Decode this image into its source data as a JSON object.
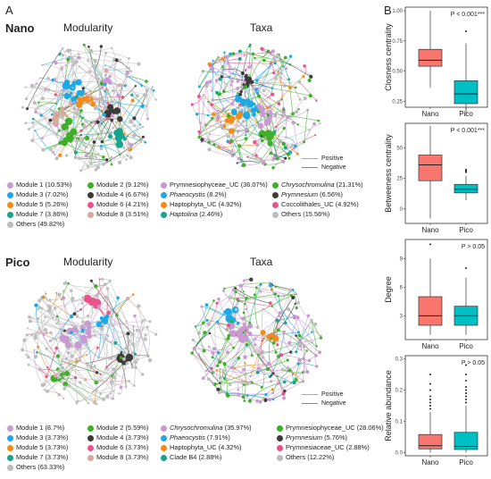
{
  "panels": {
    "a": "A",
    "b": "B"
  },
  "nano": {
    "label": "Nano",
    "modularity_title": "Modularity",
    "taxa_title": "Taxa",
    "edge_legend": {
      "positive": "Positive",
      "negative": "Negative"
    },
    "modules": [
      {
        "label": "Module 1 (10.53%)",
        "color": "#c89ad2"
      },
      {
        "label": "Module 2 (9.12%)",
        "color": "#3fae2a"
      },
      {
        "label": "Module 3 (7.02%)",
        "color": "#1ca9e6"
      },
      {
        "label": "Module 4 (6.67%)",
        "color": "#3d3a3a"
      },
      {
        "label": "Module 5 (5.26%)",
        "color": "#f28a1c"
      },
      {
        "label": "Module 6 (4.21%)",
        "color": "#e8548a"
      },
      {
        "label": "Module 7 (3.86%)",
        "color": "#16a58f"
      },
      {
        "label": "Module 8 (3.51%)",
        "color": "#d9a79b"
      },
      {
        "label": "Others (49.82%)",
        "color": "#bdbdbd"
      }
    ],
    "taxa": [
      {
        "label": "Prymnesiophyceae_UC (36.07%)",
        "color": "#c89ad2",
        "italic": false
      },
      {
        "label": "Chrysochromulina",
        "suffix": " (21.31%)",
        "color": "#3fae2a",
        "italic": true
      },
      {
        "label": "Phaeocystis",
        "suffix": " (8.2%)",
        "color": "#1ca9e6",
        "italic": true
      },
      {
        "label": "Prymnesium",
        "suffix": " (6.56%)",
        "color": "#3d3a3a",
        "italic": true
      },
      {
        "label": "Haptophyta_UC (4.92%)",
        "color": "#f28a1c",
        "italic": false
      },
      {
        "label": "Coccolithales_UC (4.92%)",
        "color": "#e8548a",
        "italic": false
      },
      {
        "label": "Haptolina",
        "suffix": " (2.46%)",
        "color": "#16a58f",
        "italic": true
      },
      {
        "label": "Others (15.56%)",
        "color": "#bdbdbd",
        "italic": false
      }
    ]
  },
  "pico": {
    "label": "Pico",
    "modularity_title": "Modularity",
    "taxa_title": "Taxa",
    "edge_legend": {
      "positive": "Positive",
      "negative": "Negative"
    },
    "modules": [
      {
        "label": "Module 1 (8.7%)",
        "color": "#c89ad2"
      },
      {
        "label": "Module 2 (5.59%)",
        "color": "#3fae2a"
      },
      {
        "label": "Module 3 (3.73%)",
        "color": "#1ca9e6"
      },
      {
        "label": "Module 4 (3.73%)",
        "color": "#3d3a3a"
      },
      {
        "label": "Module 5 (3.73%)",
        "color": "#f28a1c"
      },
      {
        "label": "Module 6 (3.73%)",
        "color": "#e8548a"
      },
      {
        "label": "Module 7 (3.73%)",
        "color": "#16a58f"
      },
      {
        "label": "Module 8 (3.73%)",
        "color": "#d9a79b"
      },
      {
        "label": "Others (63.33%)",
        "color": "#bdbdbd"
      }
    ],
    "taxa": [
      {
        "label": "Chrysochromulina",
        "suffix": " (35.97%)",
        "color": "#c89ad2",
        "italic": true
      },
      {
        "label": "Prymnesiophyceae_UC (28.06%)",
        "color": "#3fae2a",
        "italic": false
      },
      {
        "label": "Phaeocystis",
        "suffix": " (7.91%)",
        "color": "#1ca9e6",
        "italic": true
      },
      {
        "label": "Prymnesium",
        "suffix": " (5.76%)",
        "color": "#3d3a3a",
        "italic": true
      },
      {
        "label": "Haptophyta_UC (4.32%)",
        "color": "#f28a1c",
        "italic": false
      },
      {
        "label": "Prymnesiaceae_UC (2.88%)",
        "color": "#e8548a",
        "italic": false
      },
      {
        "label": "Clade B4 (2.88%)",
        "color": "#16a58f",
        "italic": false
      },
      {
        "label": "Others (12.22%)",
        "color": "#bdbdbd",
        "italic": false
      }
    ]
  },
  "chart_data": [
    {
      "type": "boxplot",
      "ylabel": "Closness centrality",
      "annotation": "P < 0.001***",
      "categories": [
        "Nano",
        "Pico"
      ],
      "yticks": [
        "0.25",
        "0.50",
        "0.75",
        "1.00"
      ],
      "ylim": [
        0.2,
        1.03
      ],
      "colors": [
        "#f8766d",
        "#00bfc4"
      ],
      "boxes": [
        {
          "min": 0.36,
          "q1": 0.54,
          "median": 0.59,
          "q3": 0.68,
          "max": 1.0,
          "outliers": []
        },
        {
          "min": 0.13,
          "q1": 0.23,
          "median": 0.31,
          "q3": 0.42,
          "max": 0.73,
          "outliers": [
            0.83
          ]
        }
      ]
    },
    {
      "type": "boxplot",
      "ylabel": "Betweeness centrality",
      "annotation": "P < 0.001***",
      "categories": [
        "Nano",
        "Pico"
      ],
      "yticks": [
        "0",
        "25",
        "50"
      ],
      "ylim": [
        -12,
        70
      ],
      "colors": [
        "#f8766d",
        "#00bfc4"
      ],
      "boxes": [
        {
          "min": -8,
          "q1": 23,
          "median": 36,
          "q3": 44,
          "max": 68,
          "outliers": []
        },
        {
          "min": 7,
          "q1": 13,
          "median": 16,
          "q3": 20,
          "max": 27,
          "outliers": [
            30,
            31,
            32
          ]
        }
      ]
    },
    {
      "type": "boxplot",
      "ylabel": "Degree",
      "annotation": "P > 0.05",
      "categories": [
        "Nano",
        "Pico"
      ],
      "yticks": [
        "3",
        "6",
        "9"
      ],
      "ylim": [
        0.5,
        11
      ],
      "colors": [
        "#f8766d",
        "#00bfc4"
      ],
      "boxes": [
        {
          "min": 1,
          "q1": 2,
          "median": 3,
          "q3": 5,
          "max": 9,
          "outliers": [
            10.5
          ]
        },
        {
          "min": 1,
          "q1": 2,
          "median": 3,
          "q3": 4,
          "max": 7,
          "outliers": [
            8
          ]
        }
      ]
    },
    {
      "type": "boxplot",
      "ylabel": "Relative abundance",
      "annotation": "P > 0.05",
      "categories": [
        "Nano",
        "Pico"
      ],
      "yticks": [
        "0.0",
        "0.1",
        "0.2",
        "0.3"
      ],
      "ylim": [
        -0.01,
        0.31
      ],
      "colors": [
        "#f8766d",
        "#00bfc4"
      ],
      "boxes": [
        {
          "min": 0.0,
          "q1": 0.012,
          "median": 0.022,
          "q3": 0.058,
          "max": 0.13,
          "outliers": [
            0.14,
            0.15,
            0.16,
            0.17,
            0.18,
            0.2,
            0.22,
            0.25
          ]
        },
        {
          "min": 0.0,
          "q1": 0.01,
          "median": 0.02,
          "q3": 0.065,
          "max": 0.15,
          "outliers": [
            0.16,
            0.17,
            0.18,
            0.19,
            0.2,
            0.21,
            0.23,
            0.25,
            0.28
          ]
        }
      ]
    }
  ]
}
